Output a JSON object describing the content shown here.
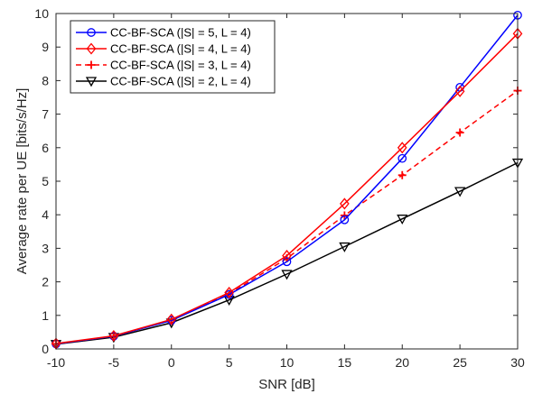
{
  "chart_data": {
    "type": "line",
    "xlabel": "SNR [dB]",
    "ylabel": "Average rate per UE [bits/s/Hz]",
    "xlim": [
      -10,
      30
    ],
    "ylim": [
      0,
      10
    ],
    "xticks": [
      -10,
      -5,
      0,
      5,
      10,
      15,
      20,
      25,
      30
    ],
    "yticks": [
      0,
      1,
      2,
      3,
      4,
      5,
      6,
      7,
      8,
      9,
      10
    ],
    "xtick_labels": [
      "-10",
      "-5",
      "0",
      "5",
      "10",
      "15",
      "20",
      "25",
      "30"
    ],
    "ytick_labels": [
      "0",
      "1",
      "2",
      "3",
      "4",
      "5",
      "6",
      "7",
      "8",
      "9",
      "10"
    ],
    "grid": false,
    "legend_position": "top-left",
    "x": [
      -10,
      -5,
      0,
      5,
      10,
      15,
      20,
      25,
      30
    ],
    "series": [
      {
        "name": "CC-BF-SCA (|S| = 5, L = 4)",
        "color": "#0000ff",
        "line_style": "solid",
        "marker": "circle",
        "values": [
          0.15,
          0.38,
          0.85,
          1.62,
          2.6,
          3.85,
          5.68,
          7.8,
          9.95
        ]
      },
      {
        "name": "CC-BF-SCA (|S| = 4, L = 4)",
        "color": "#ff0000",
        "line_style": "solid",
        "marker": "diamond",
        "values": [
          0.16,
          0.39,
          0.88,
          1.68,
          2.78,
          4.33,
          6.0,
          7.68,
          9.4
        ]
      },
      {
        "name": "CC-BF-SCA (|S| = 3, L = 4)",
        "color": "#ff0000",
        "line_style": "dashed",
        "marker": "plus",
        "values": [
          0.15,
          0.38,
          0.86,
          1.64,
          2.7,
          3.98,
          5.18,
          6.45,
          7.7
        ]
      },
      {
        "name": "CC-BF-SCA (|S| = 2, L = 4)",
        "color": "#000000",
        "line_style": "solid",
        "marker": "triangle-down",
        "values": [
          0.14,
          0.35,
          0.78,
          1.46,
          2.23,
          3.05,
          3.88,
          4.7,
          5.55
        ]
      }
    ]
  }
}
